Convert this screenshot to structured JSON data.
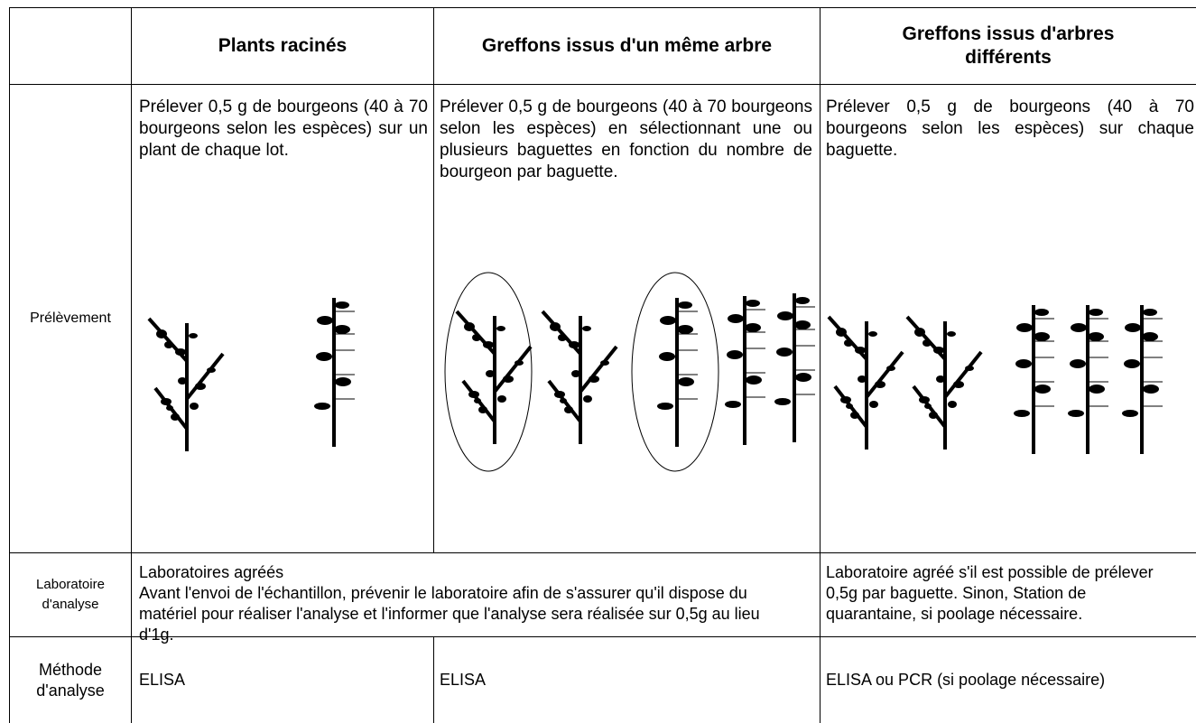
{
  "table": {
    "columns": [
      "Plants racinés",
      "Greffons issus d'un même arbre",
      "Greffons issus d'arbres différents"
    ],
    "rows": [
      {
        "label": "Prélèvement",
        "cells": [
          "Prélever 0,5 g de bourgeons (40 à 70 bourgeons selon les espèces) sur un plant de chaque lot.",
          "Prélever 0,5 g de bourgeons (40 à 70 bourgeons selon les espèces) en sélectionnant une ou plusieurs baguettes en fonction du nombre de bourgeon par baguette.",
          "Prélever 0,5 g de bourgeons (40 à 70 bourgeons selon les espèces) sur chaque baguette."
        ]
      },
      {
        "label": "Laboratoire d'analyse",
        "cells": [
          "Laboratoires agréés",
          "Avant l'envoi de l'échantillon, prévenir le laboratoire afin de s'assurer qu'il dispose du matériel pour réaliser l'analyse et l'informer que l'analyse sera réalisée sur 0,5g au lieu d'1g.",
          "Laboratoire agréé s'il est possible de prélever 0,5g par baguette. Sinon, Station de quarantaine, si poolage nécessaire."
        ]
      },
      {
        "label": "Méthode d'analyse",
        "cells": [
          "ELISA",
          "ELISA",
          "ELISA ou PCR (si poolage nécessaire)"
        ]
      }
    ]
  }
}
